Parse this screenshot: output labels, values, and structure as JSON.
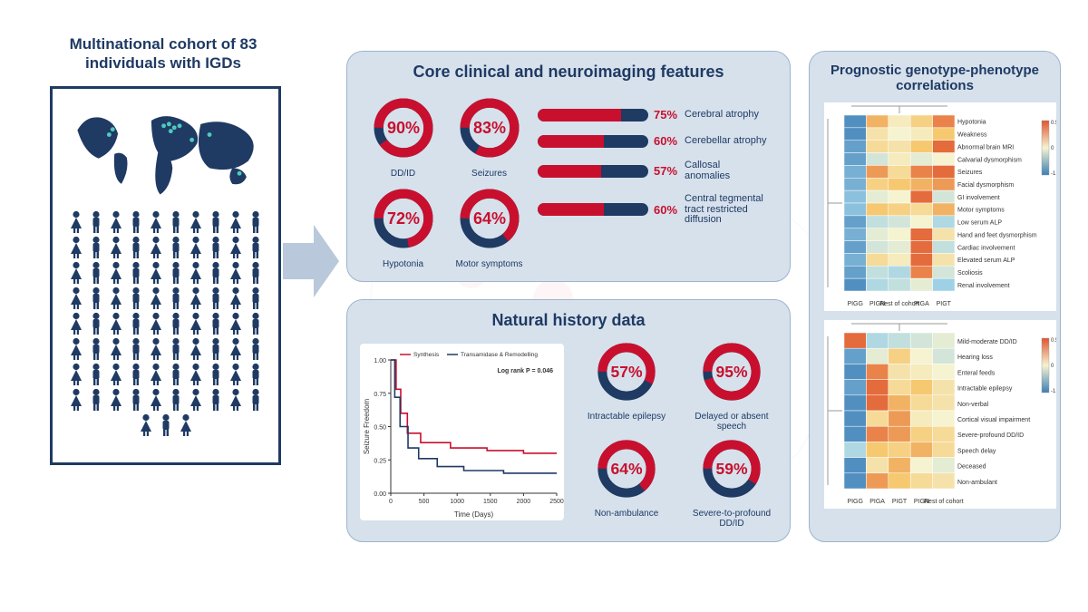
{
  "colors": {
    "navy": "#1f3a63",
    "red": "#c8102e",
    "panel_bg": "#d6e1ec",
    "panel_border": "#9db4cc",
    "heat_high": "#e0542f",
    "heat_mid_warm": "#f6c971",
    "heat_mid": "#f5f3d0",
    "heat_mid_cool": "#9fd1e6",
    "heat_low": "#3d7fb8"
  },
  "cohort": {
    "title": "Multinational cohort of 83 individuals with IGDs",
    "n": 83
  },
  "panels": {
    "core": {
      "title": "Core clinical and neuroimaging features",
      "donuts": [
        {
          "pct": 90,
          "label": "DD/ID"
        },
        {
          "pct": 83,
          "label": "Seizures"
        },
        {
          "pct": 72,
          "label": "Hypotonia"
        },
        {
          "pct": 64,
          "label": "Motor symptoms"
        }
      ],
      "bars": [
        {
          "pct": 75,
          "label": "Cerebral atrophy"
        },
        {
          "pct": 60,
          "label": "Cerebellar atrophy"
        },
        {
          "pct": 57,
          "label": "Callosal anomalies"
        },
        {
          "pct": 60,
          "label": "Central tegmental tract restricted diffusion"
        }
      ]
    },
    "history": {
      "title": "Natural history data",
      "km": {
        "legend": [
          "Synthesis",
          "Transamidase & Remodelling"
        ],
        "logrank": "Log rank P = 0.046",
        "xlabel": "Time (Days)",
        "ylabel": "Seizure Freedom",
        "xlim": [
          0,
          2500
        ],
        "xtick_step": 500,
        "ylim": [
          0,
          1.0
        ],
        "ytick_step": 0.25,
        "series_colors": [
          "#c8102e",
          "#1f3a63"
        ],
        "series1": [
          [
            0,
            1.0
          ],
          [
            80,
            0.78
          ],
          [
            150,
            0.6
          ],
          [
            250,
            0.45
          ],
          [
            450,
            0.38
          ],
          [
            900,
            0.34
          ],
          [
            1450,
            0.32
          ],
          [
            2000,
            0.3
          ],
          [
            2500,
            0.3
          ]
        ],
        "series2": [
          [
            0,
            1.0
          ],
          [
            60,
            0.72
          ],
          [
            140,
            0.5
          ],
          [
            260,
            0.34
          ],
          [
            420,
            0.26
          ],
          [
            700,
            0.2
          ],
          [
            1100,
            0.17
          ],
          [
            1700,
            0.15
          ],
          [
            2500,
            0.15
          ]
        ]
      },
      "donuts": [
        {
          "pct": 57,
          "label": "Intractable epilepsy"
        },
        {
          "pct": 95,
          "label": "Delayed or absent speech"
        },
        {
          "pct": 64,
          "label": "Non-ambulance"
        },
        {
          "pct": 59,
          "label": "Severe-to-profound DD/ID"
        }
      ]
    },
    "geno": {
      "title": "Prognostic genotype-phenotype correlations",
      "heatmap1": {
        "cols": [
          "PIGG",
          "PIGN",
          "Rest of cohort",
          "PIGA",
          "PIGT"
        ],
        "rows": [
          "Hypotonia",
          "Weakness",
          "Abnormal brain MRI",
          "Calvarial dysmorphism",
          "Seizures",
          "Facial dysmorphism",
          "GI involvement",
          "Motor symptoms",
          "Low serum ALP",
          "Hand and feet dysmorphism",
          "Cardiac involvement",
          "Elevated serum ALP",
          "Scoliosis",
          "Renal involvement"
        ],
        "values": [
          [
            -0.9,
            0.6,
            0.1,
            0.4,
            0.8
          ],
          [
            -0.9,
            0.2,
            0.0,
            0.1,
            0.5
          ],
          [
            -0.8,
            0.3,
            0.2,
            0.5,
            0.9
          ],
          [
            -0.8,
            -0.2,
            0.1,
            -0.1,
            0.0
          ],
          [
            -0.7,
            0.7,
            0.3,
            0.8,
            0.9
          ],
          [
            -0.7,
            0.4,
            0.5,
            0.6,
            0.7
          ],
          [
            -0.6,
            -0.1,
            0.0,
            0.9,
            -0.2
          ],
          [
            -0.6,
            0.5,
            0.4,
            0.3,
            0.6
          ],
          [
            -0.8,
            -0.3,
            -0.2,
            0.0,
            -0.4
          ],
          [
            -0.7,
            -0.1,
            0.0,
            0.9,
            0.2
          ],
          [
            -0.8,
            -0.2,
            -0.1,
            0.9,
            -0.3
          ],
          [
            -0.7,
            0.3,
            0.1,
            0.9,
            0.2
          ],
          [
            -0.8,
            -0.3,
            -0.4,
            0.8,
            -0.2
          ],
          [
            -0.9,
            -0.4,
            -0.3,
            -0.1,
            -0.5
          ]
        ],
        "legend": {
          "min": -1.5,
          "mid": 0,
          "max": 0.5
        }
      },
      "heatmap2": {
        "cols": [
          "PIGG",
          "PIGA",
          "PIGT",
          "PIGN",
          "Rest of cohort"
        ],
        "rows": [
          "Mild-moderate DD/ID",
          "Hearing loss",
          "Enteral feeds",
          "Intractable epilepsy",
          "Non-verbal",
          "Cortical visual impairment",
          "Severe-profound DD/ID",
          "Speech delay",
          "Deceased",
          "Non-ambulant"
        ],
        "values": [
          [
            0.9,
            -0.4,
            -0.3,
            -0.2,
            -0.1
          ],
          [
            -0.8,
            -0.1,
            0.4,
            0.0,
            -0.2
          ],
          [
            -0.9,
            0.8,
            0.2,
            0.1,
            0.0
          ],
          [
            -0.8,
            0.9,
            0.3,
            0.5,
            0.2
          ],
          [
            -0.9,
            0.9,
            0.6,
            0.3,
            0.2
          ],
          [
            -0.9,
            0.3,
            0.7,
            0.1,
            0.0
          ],
          [
            -0.9,
            0.8,
            0.7,
            0.4,
            0.3
          ],
          [
            -0.4,
            0.5,
            0.4,
            0.6,
            0.3
          ],
          [
            -0.9,
            0.2,
            0.6,
            0.0,
            -0.1
          ],
          [
            -0.9,
            0.7,
            0.5,
            0.3,
            0.2
          ]
        ],
        "legend": {
          "min": -1.5,
          "mid": 0,
          "max": 0.5
        }
      }
    }
  }
}
